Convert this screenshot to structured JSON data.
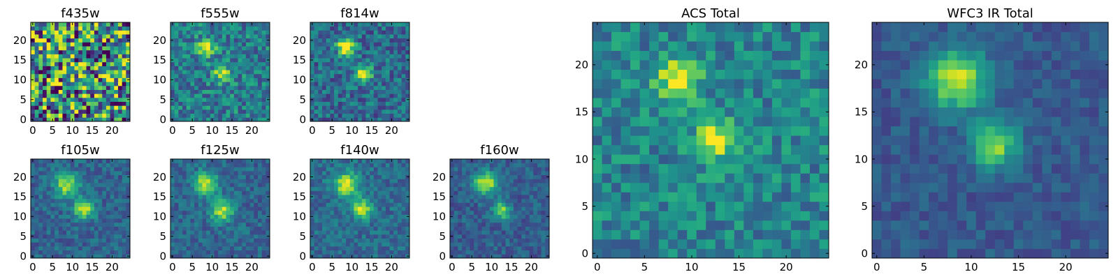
{
  "figure": {
    "colormap": "viridis",
    "background": "#ffffff",
    "frame_color": "#000000"
  },
  "chart_data": [
    {
      "type": "heatmap",
      "title": "f435w",
      "grid": false,
      "xlim": [
        -0.5,
        24.5
      ],
      "ylim": [
        -0.5,
        24.5
      ],
      "xticks": [
        0,
        5,
        10,
        15,
        20
      ],
      "yticks": [
        0,
        5,
        10,
        15,
        20
      ],
      "noise": 0.55,
      "base": 0.5,
      "seed": 11,
      "sources": [
        {
          "x": 12,
          "y": 12,
          "amp": 0.08,
          "sigma": 3.0
        }
      ]
    },
    {
      "type": "heatmap",
      "title": "f555w",
      "grid": false,
      "xlim": [
        -0.5,
        24.5
      ],
      "ylim": [
        -0.5,
        24.5
      ],
      "xticks": [
        0,
        5,
        10,
        15,
        20
      ],
      "yticks": [
        0,
        5,
        10,
        15,
        20
      ],
      "noise": 0.22,
      "base": 0.42,
      "seed": 23,
      "sources": [
        {
          "x": 8.5,
          "y": 18,
          "amp": 0.55,
          "sigma": 1.6
        },
        {
          "x": 12.5,
          "y": 11.5,
          "amp": 0.5,
          "sigma": 1.5
        }
      ]
    },
    {
      "type": "heatmap",
      "title": "f814w",
      "grid": false,
      "xlim": [
        -0.5,
        24.5
      ],
      "ylim": [
        -0.5,
        24.5
      ],
      "xticks": [
        0,
        5,
        10,
        15,
        20
      ],
      "yticks": [
        0,
        5,
        10,
        15,
        20
      ],
      "noise": 0.2,
      "base": 0.35,
      "seed": 37,
      "sources": [
        {
          "x": 8.5,
          "y": 18.5,
          "amp": 0.8,
          "sigma": 1.5
        },
        {
          "x": 13,
          "y": 11.5,
          "amp": 0.7,
          "sigma": 1.4
        }
      ]
    },
    {
      "type": "heatmap",
      "title": "f105w",
      "grid": false,
      "xlim": [
        -0.5,
        24.5
      ],
      "ylim": [
        -0.5,
        24.5
      ],
      "xticks": [
        0,
        5,
        10,
        15,
        20
      ],
      "yticks": [
        0,
        5,
        10,
        15,
        20
      ],
      "noise": 0.13,
      "base": 0.32,
      "seed": 41,
      "sources": [
        {
          "x": 8.5,
          "y": 18,
          "amp": 0.55,
          "sigma": 2.2
        },
        {
          "x": 13,
          "y": 12,
          "amp": 0.6,
          "sigma": 1.8
        }
      ]
    },
    {
      "type": "heatmap",
      "title": "f125w",
      "grid": false,
      "xlim": [
        -0.5,
        24.5
      ],
      "ylim": [
        -0.5,
        24.5
      ],
      "xticks": [
        0,
        5,
        10,
        15,
        20
      ],
      "yticks": [
        0,
        5,
        10,
        15,
        20
      ],
      "noise": 0.13,
      "base": 0.33,
      "seed": 53,
      "sources": [
        {
          "x": 8.5,
          "y": 18.5,
          "amp": 0.6,
          "sigma": 2.0
        },
        {
          "x": 12.5,
          "y": 11.5,
          "amp": 0.55,
          "sigma": 2.0
        }
      ]
    },
    {
      "type": "heatmap",
      "title": "f140w",
      "grid": false,
      "xlim": [
        -0.5,
        24.5
      ],
      "ylim": [
        -0.5,
        24.5
      ],
      "xticks": [
        0,
        5,
        10,
        15,
        20
      ],
      "yticks": [
        0,
        5,
        10,
        15,
        20
      ],
      "noise": 0.13,
      "base": 0.35,
      "seed": 67,
      "sources": [
        {
          "x": 8.5,
          "y": 18,
          "amp": 0.6,
          "sigma": 2.2
        },
        {
          "x": 12.5,
          "y": 12,
          "amp": 0.55,
          "sigma": 1.8
        }
      ]
    },
    {
      "type": "heatmap",
      "title": "f160w",
      "grid": false,
      "xlim": [
        -0.5,
        24.5
      ],
      "ylim": [
        -0.5,
        24.5
      ],
      "xticks": [
        0,
        5,
        10,
        15,
        20
      ],
      "yticks": [
        0,
        5,
        10,
        15,
        20
      ],
      "noise": 0.12,
      "base": 0.3,
      "seed": 79,
      "sources": [
        {
          "x": 8.5,
          "y": 18.5,
          "amp": 0.65,
          "sigma": 2.0
        },
        {
          "x": 12.5,
          "y": 11.5,
          "amp": 0.5,
          "sigma": 1.6
        }
      ]
    },
    {
      "type": "heatmap",
      "title": "ACS Total",
      "grid": false,
      "xlim": [
        -0.5,
        24.5
      ],
      "ylim": [
        -0.5,
        24.5
      ],
      "xticks": [
        0,
        5,
        10,
        15,
        20
      ],
      "yticks": [
        0,
        5,
        10,
        15,
        20
      ],
      "noise": 0.18,
      "base": 0.45,
      "seed": 97,
      "sources": [
        {
          "x": 8.5,
          "y": 18.5,
          "amp": 0.55,
          "sigma": 1.6
        },
        {
          "x": 12.5,
          "y": 12,
          "amp": 0.55,
          "sigma": 1.5
        }
      ]
    },
    {
      "type": "heatmap",
      "title": "WFC3 IR Total",
      "grid": false,
      "xlim": [
        -0.5,
        24.5
      ],
      "ylim": [
        -0.5,
        24.5
      ],
      "xticks": [
        0,
        5,
        10,
        15,
        20
      ],
      "yticks": [
        0,
        5,
        10,
        15,
        20
      ],
      "noise": 0.09,
      "base": 0.28,
      "seed": 113,
      "sources": [
        {
          "x": 8.5,
          "y": 18.5,
          "amp": 0.65,
          "sigma": 2.2
        },
        {
          "x": 12.5,
          "y": 11.5,
          "amp": 0.55,
          "sigma": 1.7
        }
      ]
    }
  ]
}
